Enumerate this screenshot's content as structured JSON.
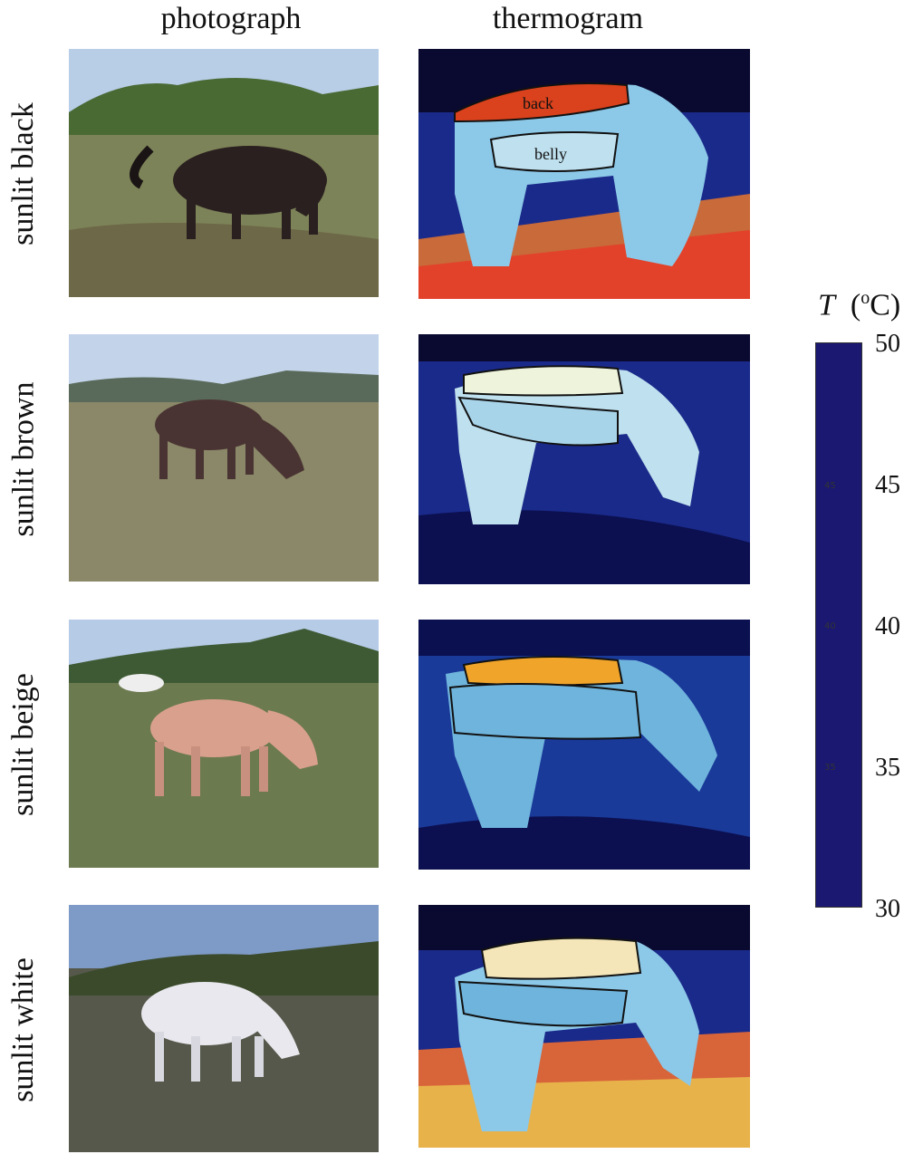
{
  "columns": {
    "photo": "photograph",
    "thermo": "thermogram"
  },
  "rows": [
    {
      "label": "sunlit black",
      "coat": "#2a2020",
      "back_color": "#d9421c",
      "belly_color": "#bfe0ee",
      "region_back": "back",
      "region_belly": "belly"
    },
    {
      "label": "sunlit brown",
      "coat": "#4a3433",
      "back_color": "#eef4dc",
      "belly_color": "#a8d4ea",
      "region_back": "",
      "region_belly": ""
    },
    {
      "label": "sunlit beige",
      "coat": "#d9a08e",
      "back_color": "#f0a42a",
      "belly_color": "#6fb4dc",
      "region_back": "",
      "region_belly": ""
    },
    {
      "label": "sunlit white",
      "coat": "#e8e8ee",
      "back_color": "#f4e6b8",
      "belly_color": "#6fb4dc",
      "region_back": "",
      "region_belly": ""
    }
  ],
  "colorbar": {
    "title_symbol": "T",
    "title_unit_pre": "(",
    "title_degree": "o",
    "title_unit_post": "C)",
    "ticks": [
      "50",
      "45",
      "40",
      "35",
      "30"
    ],
    "inner_ticks": [
      "45",
      "40",
      "35"
    ],
    "range": [
      30,
      50
    ],
    "stops": [
      "#1a1870",
      "#1f4fb0",
      "#2d8fd0",
      "#8cc8e8",
      "#ffffff",
      "#f2c418",
      "#ef7a1a",
      "#d42a2a",
      "#cc1a40"
    ]
  }
}
